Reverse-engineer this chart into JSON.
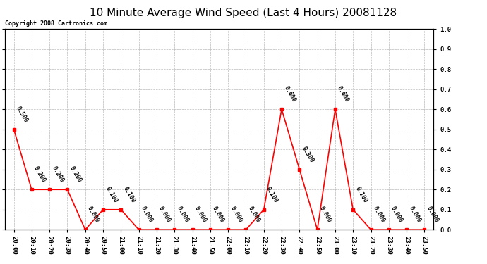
{
  "title": "10 Minute Average Wind Speed (Last 4 Hours) 20081128",
  "copyright": "Copyright 2008 Cartronics.com",
  "x_labels": [
    "20:00",
    "20:10",
    "20:20",
    "20:30",
    "20:40",
    "20:50",
    "21:00",
    "21:10",
    "21:20",
    "21:30",
    "21:40",
    "21:50",
    "22:00",
    "22:10",
    "22:20",
    "22:30",
    "22:40",
    "22:50",
    "23:00",
    "23:10",
    "23:20",
    "23:30",
    "23:40",
    "23:50"
  ],
  "y_values": [
    0.5,
    0.2,
    0.2,
    0.2,
    0.0,
    0.1,
    0.1,
    0.0,
    0.0,
    0.0,
    0.0,
    0.0,
    0.0,
    0.0,
    0.1,
    0.6,
    0.3,
    0.0,
    0.6,
    0.1,
    0.0,
    0.0,
    0.0,
    0.0
  ],
  "line_color": "#ff0000",
  "marker_color": "#ff0000",
  "bg_color": "#ffffff",
  "grid_color": "#bbbbbb",
  "border_color": "#000000",
  "title_fontsize": 11,
  "annotation_fontsize": 6,
  "copyright_fontsize": 6,
  "tick_fontsize": 6.5,
  "ylim": [
    0.0,
    1.0
  ],
  "yticks": [
    0.0,
    0.1,
    0.2,
    0.3,
    0.4,
    0.5,
    0.6,
    0.7,
    0.8,
    0.9,
    1.0
  ]
}
